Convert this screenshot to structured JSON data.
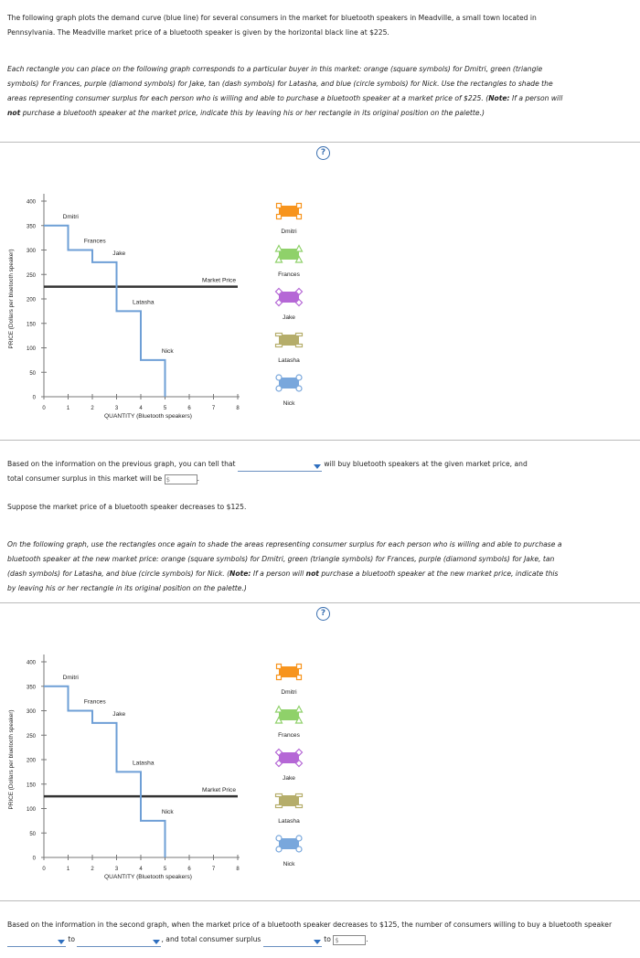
{
  "intro": "The following graph plots the demand curve (blue line) for several consumers in the market for bluetooth speakers in Meadville, a small town located in Pennsylvania. The Meadville market price of a bluetooth speaker is given by the horizontal black line at $225.",
  "instructions1": "Each rectangle you can place on the following graph corresponds to a particular buyer in this market: orange (square symbols) for Dmitri, green (triangle symbols) for Frances, purple (diamond symbols) for Jake, tan (dash symbols) for Latasha, and blue (circle symbols) for Nick. Use the rectangles to shade the areas representing consumer surplus for each person who is willing and able to purchase a bluetooth speaker at a market price of $225.",
  "note_label": "Note:",
  "note1_a": "If a person will",
  "note_not": "not",
  "note1_b": "purchase a bluetooth speaker at the market price, indicate this by leaving his or her rectangle in its original position on the palette.)",
  "help": "?",
  "q1_a": "Based on the information on the previous graph, you can tell that",
  "q1_b": "will buy bluetooth speakers at the given market price, and",
  "q1_c": "total consumer surplus in this market will be",
  "dollar": "$",
  "period": ".",
  "suppose": "Suppose the market price of a bluetooth speaker decreases to $125.",
  "instructions2": "On the following graph, use the rectangles once again to shade the areas representing consumer surplus for each person who is willing and able to purchase a bluetooth speaker at the new market price: orange (square symbols) for Dmitri, green (triangle symbols) for Frances, purple (diamond symbols) for Jake, tan (dash symbols) for Latasha, and blue (circle symbols) for Nick.",
  "note2_b": "purchase a bluetooth speaker at the new market price, indicate this by leaving his or her rectangle in its original position on the palette.)",
  "q2_a": "Based on the information in the second graph, when the market price of a bluetooth speaker decreases to $125, the number of consumers willing to buy a bluetooth speaker",
  "q2_to": "to",
  "q2_b": ", and total consumer surplus",
  "chart_common": {
    "ylabel": "PRICE (Dollars per bluetooth speaker)",
    "xlabel": "QUANTITY (Bluetooth speakers)",
    "market_label": "Market Price",
    "palette": [
      {
        "name": "Dmitri",
        "color": "#f7941d",
        "shape": "square"
      },
      {
        "name": "Frances",
        "color": "#8fd16a",
        "shape": "triangle"
      },
      {
        "name": "Jake",
        "color": "#b567d6",
        "shape": "diamond"
      },
      {
        "name": "Latasha",
        "color": "#b5ad6a",
        "shape": "dash"
      },
      {
        "name": "Nick",
        "color": "#79a7dc",
        "shape": "circle"
      }
    ]
  },
  "chart_data": [
    {
      "type": "line",
      "xlim": [
        0,
        8
      ],
      "ylim": [
        0,
        400
      ],
      "x_ticks": [
        0,
        1,
        2,
        3,
        4,
        5,
        6,
        7,
        8
      ],
      "y_ticks": [
        0,
        50,
        100,
        150,
        200,
        250,
        300,
        350,
        400
      ],
      "demand_steps": [
        {
          "x": [
            0,
            1
          ],
          "y": 350,
          "label": "Dmitri"
        },
        {
          "x": [
            1,
            2
          ],
          "y": 300,
          "label": "Frances"
        },
        {
          "x": [
            2,
            3
          ],
          "y": 275,
          "label": "Jake"
        },
        {
          "x": [
            3,
            4
          ],
          "y": 175,
          "label": "Latasha"
        },
        {
          "x": [
            4,
            5
          ],
          "y": 75,
          "label": "Nick"
        }
      ],
      "demand_end_x": 5,
      "market_price": 225
    },
    {
      "type": "line",
      "xlim": [
        0,
        8
      ],
      "ylim": [
        0,
        400
      ],
      "x_ticks": [
        0,
        1,
        2,
        3,
        4,
        5,
        6,
        7,
        8
      ],
      "y_ticks": [
        0,
        50,
        100,
        150,
        200,
        250,
        300,
        350,
        400
      ],
      "demand_steps": [
        {
          "x": [
            0,
            1
          ],
          "y": 350,
          "label": "Dmitri"
        },
        {
          "x": [
            1,
            2
          ],
          "y": 300,
          "label": "Frances"
        },
        {
          "x": [
            2,
            3
          ],
          "y": 275,
          "label": "Jake"
        },
        {
          "x": [
            3,
            4
          ],
          "y": 175,
          "label": "Latasha"
        },
        {
          "x": [
            4,
            5
          ],
          "y": 75,
          "label": "Nick"
        }
      ],
      "demand_end_x": 5,
      "market_price": 125
    }
  ]
}
